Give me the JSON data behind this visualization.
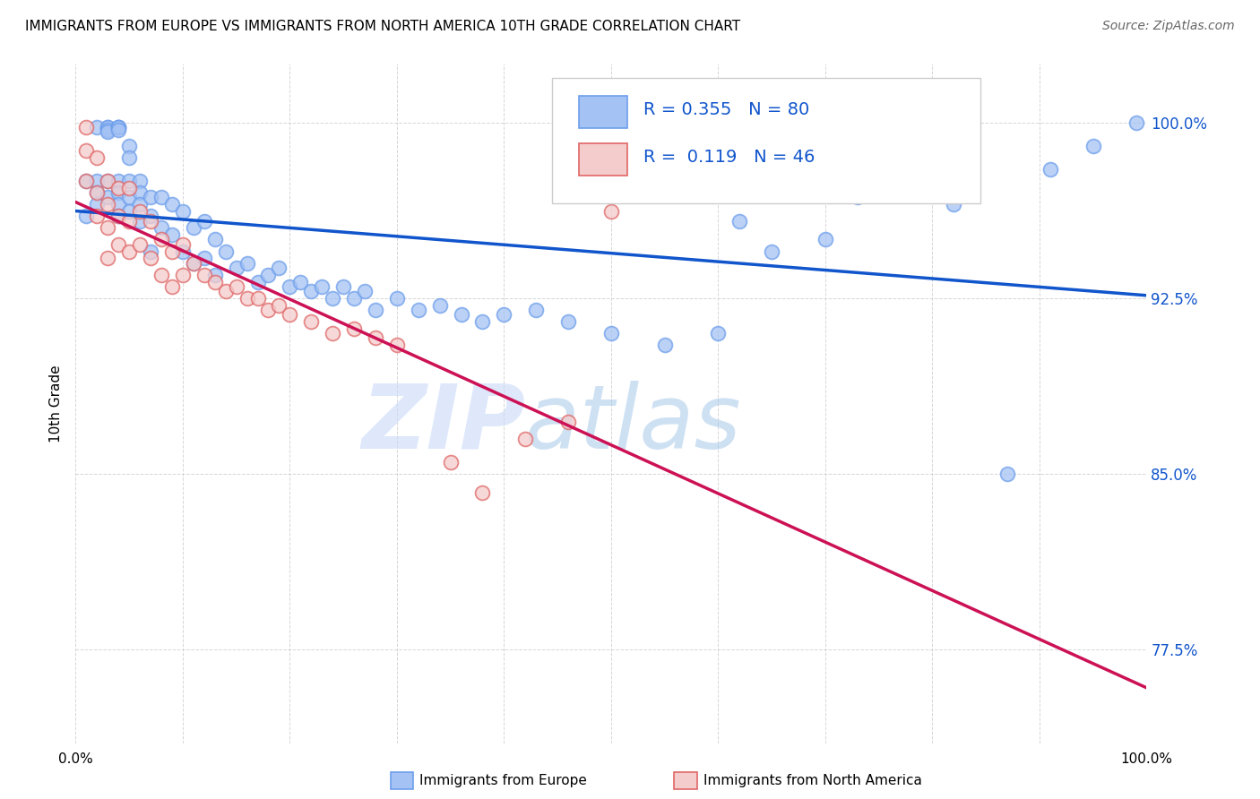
{
  "title": "IMMIGRANTS FROM EUROPE VS IMMIGRANTS FROM NORTH AMERICA 10TH GRADE CORRELATION CHART",
  "source": "Source: ZipAtlas.com",
  "ylabel": "10th Grade",
  "y_ticks": [
    0.775,
    0.85,
    0.925,
    1.0
  ],
  "y_tick_labels": [
    "77.5%",
    "85.0%",
    "92.5%",
    "100.0%"
  ],
  "x_range": [
    0.0,
    1.0
  ],
  "y_range": [
    0.735,
    1.025
  ],
  "blue_R": 0.355,
  "blue_N": 80,
  "pink_R": 0.119,
  "pink_N": 46,
  "legend_label_blue": "Immigrants from Europe",
  "legend_label_pink": "Immigrants from North America",
  "blue_color": "#a4c2f4",
  "pink_color": "#f4cccc",
  "blue_edge_color": "#6d9eeb",
  "pink_edge_color": "#e06666",
  "blue_line_color": "#1155cc",
  "pink_line_color": "#cc1155",
  "watermark_zip_color": "#c9daf8",
  "watermark_atlas_color": "#9fc5e8",
  "blue_x": [
    0.01,
    0.01,
    0.02,
    0.02,
    0.02,
    0.02,
    0.03,
    0.03,
    0.03,
    0.03,
    0.03,
    0.03,
    0.04,
    0.04,
    0.04,
    0.04,
    0.04,
    0.04,
    0.04,
    0.04,
    0.05,
    0.05,
    0.05,
    0.05,
    0.05,
    0.06,
    0.06,
    0.06,
    0.06,
    0.07,
    0.07,
    0.07,
    0.08,
    0.08,
    0.09,
    0.09,
    0.1,
    0.1,
    0.11,
    0.11,
    0.12,
    0.12,
    0.13,
    0.13,
    0.14,
    0.15,
    0.16,
    0.17,
    0.18,
    0.19,
    0.2,
    0.21,
    0.22,
    0.23,
    0.24,
    0.25,
    0.26,
    0.27,
    0.28,
    0.3,
    0.32,
    0.34,
    0.36,
    0.38,
    0.4,
    0.43,
    0.46,
    0.5,
    0.55,
    0.6,
    0.62,
    0.65,
    0.7,
    0.73,
    0.78,
    0.82,
    0.87,
    0.91,
    0.95,
    0.99
  ],
  "blue_y": [
    0.975,
    0.96,
    0.998,
    0.975,
    0.97,
    0.965,
    0.998,
    0.998,
    0.997,
    0.996,
    0.975,
    0.968,
    0.998,
    0.998,
    0.998,
    0.997,
    0.975,
    0.97,
    0.965,
    0.96,
    0.99,
    0.985,
    0.975,
    0.968,
    0.962,
    0.975,
    0.97,
    0.965,
    0.958,
    0.968,
    0.96,
    0.945,
    0.968,
    0.955,
    0.965,
    0.952,
    0.962,
    0.945,
    0.955,
    0.94,
    0.958,
    0.942,
    0.95,
    0.935,
    0.945,
    0.938,
    0.94,
    0.932,
    0.935,
    0.938,
    0.93,
    0.932,
    0.928,
    0.93,
    0.925,
    0.93,
    0.925,
    0.928,
    0.92,
    0.925,
    0.92,
    0.922,
    0.918,
    0.915,
    0.918,
    0.92,
    0.915,
    0.91,
    0.905,
    0.91,
    0.958,
    0.945,
    0.95,
    0.968,
    0.97,
    0.965,
    0.85,
    0.98,
    0.99,
    1.0
  ],
  "pink_x": [
    0.01,
    0.01,
    0.01,
    0.02,
    0.02,
    0.02,
    0.03,
    0.03,
    0.03,
    0.03,
    0.04,
    0.04,
    0.04,
    0.05,
    0.05,
    0.05,
    0.06,
    0.06,
    0.07,
    0.07,
    0.08,
    0.08,
    0.09,
    0.09,
    0.1,
    0.1,
    0.11,
    0.12,
    0.13,
    0.14,
    0.15,
    0.16,
    0.17,
    0.18,
    0.19,
    0.2,
    0.22,
    0.24,
    0.26,
    0.28,
    0.3,
    0.35,
    0.38,
    0.42,
    0.46,
    0.5
  ],
  "pink_y": [
    0.998,
    0.988,
    0.975,
    0.985,
    0.97,
    0.96,
    0.975,
    0.965,
    0.955,
    0.942,
    0.972,
    0.96,
    0.948,
    0.972,
    0.958,
    0.945,
    0.962,
    0.948,
    0.958,
    0.942,
    0.95,
    0.935,
    0.945,
    0.93,
    0.948,
    0.935,
    0.94,
    0.935,
    0.932,
    0.928,
    0.93,
    0.925,
    0.925,
    0.92,
    0.922,
    0.918,
    0.915,
    0.91,
    0.912,
    0.908,
    0.905,
    0.855,
    0.842,
    0.865,
    0.872,
    0.962
  ]
}
